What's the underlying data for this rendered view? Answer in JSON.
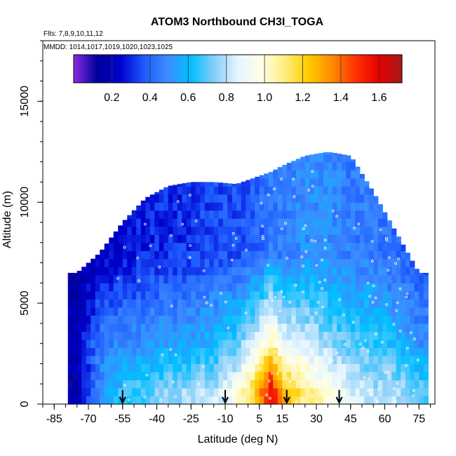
{
  "chart_data": {
    "type": "heatmap",
    "title": "ATOM3 Northbound CH3I_TOGA",
    "subtitle_flights": "Flts: 7,8,9,10,11,12",
    "subtitle_dates": "MMDD: 1014,1017,1019,1020,1023,1025",
    "xlabel": "Latitude (deg N)",
    "ylabel": "Altitude (m)",
    "xlim": [
      -90,
      82
    ],
    "ylim": [
      0,
      18000
    ],
    "x_ticks": [
      -85,
      -70,
      -55,
      -40,
      -25,
      -10,
      5,
      15,
      30,
      45,
      60,
      75
    ],
    "x_tick_labels": [
      "-85",
      "-70",
      "-55",
      "-40",
      "-25",
      "-10",
      "5",
      "15",
      "30",
      "45",
      "60",
      "75"
    ],
    "y_ticks": [
      0,
      5000,
      10000,
      15000
    ],
    "y_tick_labels": [
      "0",
      "5000",
      "10000",
      "15000"
    ],
    "colorbar": {
      "range": [
        0.0,
        1.72
      ],
      "ticks": [
        0.2,
        0.4,
        0.6,
        0.8,
        1.0,
        1.2,
        1.4,
        1.6
      ],
      "tick_labels": [
        "0.2",
        "0.4",
        "0.6",
        "0.8",
        "1.0",
        "1.2",
        "1.4",
        "1.6"
      ],
      "colors": [
        "#8a2be2",
        "#00009a",
        "#0000cd",
        "#1e5aff",
        "#3c8cff",
        "#00bfff",
        "#87cefa",
        "#e6f5ff",
        "#ffffe6",
        "#ffee80",
        "#ffcc00",
        "#ff8c00",
        "#ff3300",
        "#e60000",
        "#a51a1a"
      ]
    },
    "field": [
      {
        "lat": -75,
        "alt_max": 6500,
        "surface": 0.15,
        "bl": 0.2,
        "ft": 0.15
      },
      {
        "lat": -65,
        "alt_max": 7500,
        "surface": 0.5,
        "bl": 0.45,
        "ft": 0.2
      },
      {
        "lat": -55,
        "alt_max": 9000,
        "surface": 0.65,
        "bl": 0.5,
        "ft": 0.25
      },
      {
        "lat": -45,
        "alt_max": 10200,
        "surface": 0.7,
        "bl": 0.5,
        "ft": 0.3
      },
      {
        "lat": -35,
        "alt_max": 10800,
        "surface": 0.75,
        "bl": 0.55,
        "ft": 0.3
      },
      {
        "lat": -25,
        "alt_max": 11000,
        "surface": 0.8,
        "bl": 0.55,
        "ft": 0.32
      },
      {
        "lat": -15,
        "alt_max": 11000,
        "surface": 0.8,
        "bl": 0.6,
        "ft": 0.35
      },
      {
        "lat": -5,
        "alt_max": 10900,
        "surface": 0.95,
        "bl": 0.7,
        "ft": 0.35
      },
      {
        "lat": 5,
        "alt_max": 11300,
        "surface": 1.3,
        "bl": 0.9,
        "ft": 0.4
      },
      {
        "lat": 10,
        "alt_max": 11500,
        "surface": 1.6,
        "bl": 1.1,
        "ft": 0.45
      },
      {
        "lat": 15,
        "alt_max": 11800,
        "surface": 1.3,
        "bl": 0.9,
        "ft": 0.45
      },
      {
        "lat": 25,
        "alt_max": 12300,
        "surface": 1.1,
        "bl": 0.85,
        "ft": 0.5
      },
      {
        "lat": 35,
        "alt_max": 12500,
        "surface": 1.0,
        "bl": 0.75,
        "ft": 0.5
      },
      {
        "lat": 45,
        "alt_max": 12300,
        "surface": 0.85,
        "bl": 0.7,
        "ft": 0.45
      },
      {
        "lat": 55,
        "alt_max": 10500,
        "surface": 0.8,
        "bl": 0.65,
        "ft": 0.45
      },
      {
        "lat": 65,
        "alt_max": 8500,
        "surface": 0.8,
        "bl": 0.6,
        "ft": 0.4
      },
      {
        "lat": 75,
        "alt_max": 6500,
        "surface": 0.7,
        "bl": 0.5,
        "ft": 0.35
      }
    ],
    "ascent_markers_lat": [
      -55,
      -10,
      17,
      40
    ],
    "grid": false,
    "legend": "colorbar-top"
  }
}
